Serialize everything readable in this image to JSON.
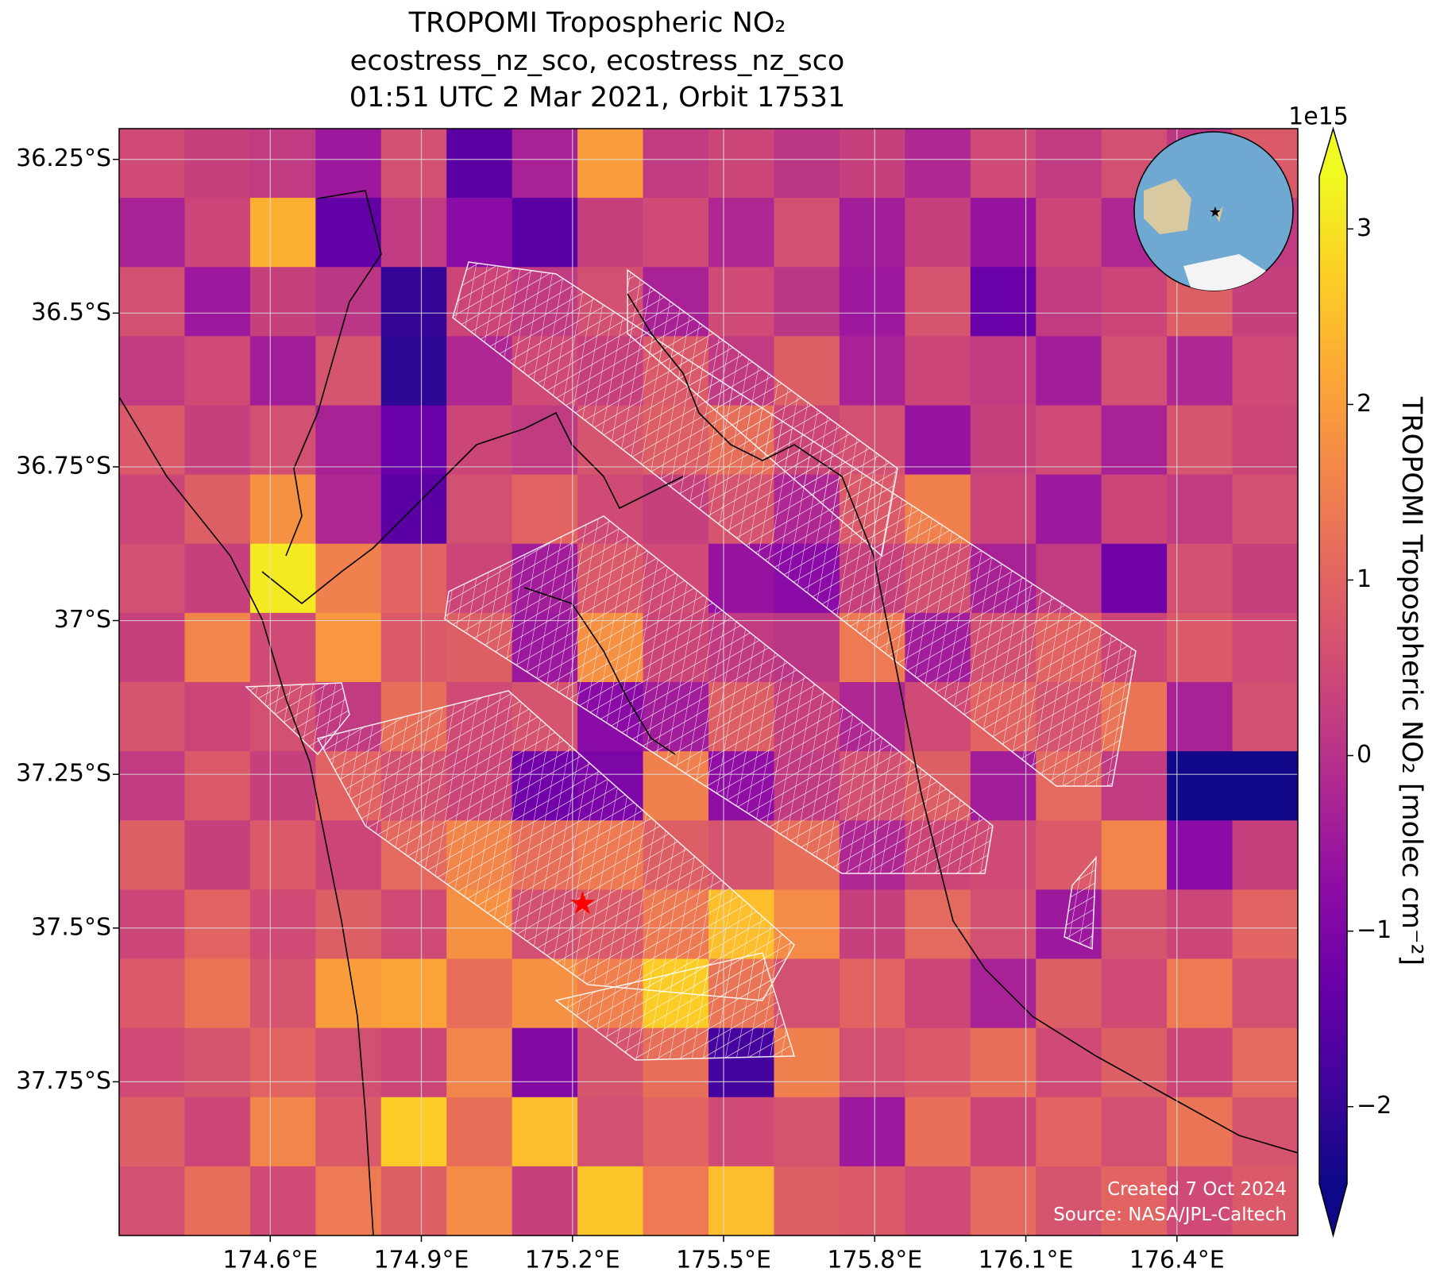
{
  "chart_data": {
    "type": "heatmap",
    "title": [
      "TROPOMI Tropospheric NO₂",
      "ecostress_nz_sco, ecostress_nz_sco",
      "01:51 UTC 2 Mar 2021, Orbit 17531"
    ],
    "xlim": [
      174.3,
      176.64
    ],
    "ylim": [
      -38.0,
      -36.2
    ],
    "xticks": [
      {
        "value": 174.6,
        "label": "174.6°E"
      },
      {
        "value": 174.9,
        "label": "174.9°E"
      },
      {
        "value": 175.2,
        "label": "175.2°E"
      },
      {
        "value": 175.5,
        "label": "175.5°E"
      },
      {
        "value": 175.8,
        "label": "175.8°E"
      },
      {
        "value": 176.1,
        "label": "176.1°E"
      },
      {
        "value": 176.4,
        "label": "176.4°E"
      }
    ],
    "yticks": [
      {
        "value": -36.25,
        "label": "36.25°S"
      },
      {
        "value": -36.5,
        "label": "36.5°S"
      },
      {
        "value": -36.75,
        "label": "36.75°S"
      },
      {
        "value": -37,
        "label": "37°S"
      },
      {
        "value": -37.25,
        "label": "37.25°S"
      },
      {
        "value": -37.5,
        "label": "37.5°S"
      },
      {
        "value": -37.75,
        "label": "37.75°S"
      }
    ],
    "grid": true,
    "colormap": "plasma",
    "clim": [
      -2.44,
      3.3
    ],
    "cticks": [
      {
        "value": -2,
        "label": "−2"
      },
      {
        "value": -1,
        "label": "−1"
      },
      0,
      1,
      2,
      3
    ],
    "cbar_offset": "1e15",
    "cbar_label": "TROPOMI Tropospheric NO₂ [molec cm⁻²]",
    "marker": {
      "lon": 175.22,
      "lat": -37.46,
      "color": "#ff0000"
    },
    "annotations": [
      "Created 7 Oct 2024",
      "Source: NASA/JPL-Caltech"
    ],
    "z": [
      [
        0.5,
        0.3,
        0.2,
        -0.5,
        0.6,
        -1.5,
        -0.3,
        2.0,
        0.2,
        0.4,
        0.1,
        0.3,
        -0.2,
        0.5,
        0.2,
        0.6,
        0.1,
        0.8
      ],
      [
        -0.3,
        0.4,
        2.3,
        -1.4,
        0.2,
        -0.8,
        -1.5,
        0.3,
        0.5,
        -0.2,
        0.6,
        -0.4,
        0.3,
        -0.6,
        0.4,
        -0.2,
        0.5,
        0.2
      ],
      [
        0.6,
        -0.5,
        0.3,
        0.1,
        -2.0,
        0.4,
        0.2,
        0.6,
        -0.3,
        0.5,
        0.1,
        -0.5,
        0.7,
        -1.3,
        0.2,
        0.4,
        0.9,
        0.3
      ],
      [
        0.2,
        0.5,
        -0.4,
        0.7,
        -2.1,
        -0.2,
        0.5,
        0.3,
        0.8,
        0.2,
        0.9,
        -0.3,
        0.4,
        0.2,
        -0.4,
        0.6,
        -0.2,
        0.5
      ],
      [
        0.8,
        0.3,
        0.6,
        -0.3,
        -1.3,
        0.4,
        0.2,
        0.7,
        0.9,
        1.2,
        0.4,
        0.6,
        -0.6,
        0.3,
        0.5,
        -0.3,
        0.7,
        0.4
      ],
      [
        0.4,
        0.9,
        1.8,
        -0.2,
        -1.5,
        0.6,
        1.0,
        0.5,
        0.3,
        0.7,
        -0.2,
        0.8,
        1.5,
        0.4,
        -0.5,
        0.4,
        0.2,
        0.6
      ],
      [
        0.6,
        0.3,
        3.1,
        1.5,
        1.0,
        0.4,
        -0.4,
        0.8,
        0.5,
        -0.6,
        -0.8,
        0.3,
        0.6,
        -0.3,
        0.2,
        -1.2,
        0.6,
        0.3
      ],
      [
        0.3,
        1.6,
        0.5,
        1.9,
        0.8,
        0.9,
        -0.5,
        1.8,
        0.4,
        0.2,
        0.1,
        1.4,
        -0.4,
        0.6,
        1.0,
        0.4,
        0.8,
        0.5
      ],
      [
        0.7,
        0.4,
        0.6,
        0.2,
        1.2,
        0.5,
        0.7,
        -0.8,
        -0.4,
        0.9,
        0.3,
        -0.2,
        0.5,
        1.0,
        0.7,
        1.3,
        -0.3,
        0.6
      ],
      [
        0.2,
        0.8,
        0.3,
        1.0,
        0.6,
        0.4,
        -1.2,
        -1.0,
        1.5,
        -0.7,
        0.2,
        0.6,
        0.9,
        -0.4,
        1.1,
        0.2,
        -2.4,
        -2.4
      ],
      [
        0.9,
        0.3,
        0.8,
        0.4,
        1.1,
        1.6,
        1.2,
        1.4,
        0.9,
        0.7,
        1.2,
        -0.2,
        0.4,
        0.5,
        0.8,
        1.6,
        -0.8,
        0.3
      ],
      [
        0.4,
        1.0,
        0.5,
        0.9,
        0.5,
        1.8,
        0.6,
        0.8,
        1.4,
        2.5,
        1.7,
        0.3,
        1.1,
        0.6,
        -0.5,
        0.7,
        0.4,
        1.0
      ],
      [
        0.8,
        1.3,
        0.7,
        2.0,
        2.1,
        1.2,
        1.8,
        1.5,
        2.7,
        1.3,
        0.6,
        1.0,
        0.4,
        -0.3,
        0.9,
        0.5,
        1.4,
        0.6
      ],
      [
        0.5,
        0.7,
        1.0,
        0.6,
        0.4,
        1.6,
        -0.9,
        0.7,
        1.2,
        -1.8,
        1.5,
        0.6,
        0.8,
        1.2,
        0.5,
        0.9,
        0.4,
        1.1
      ],
      [
        0.9,
        0.4,
        1.6,
        0.8,
        2.7,
        1.2,
        2.5,
        0.6,
        1.0,
        0.5,
        0.7,
        -0.5,
        1.2,
        0.4,
        1.0,
        0.6,
        1.3,
        0.7
      ],
      [
        0.6,
        1.2,
        0.5,
        1.4,
        0.9,
        1.7,
        0.3,
        2.6,
        1.4,
        2.5,
        0.9,
        0.8,
        0.5,
        1.1,
        0.7,
        1.0,
        0.5,
        0.8
      ]
    ]
  }
}
